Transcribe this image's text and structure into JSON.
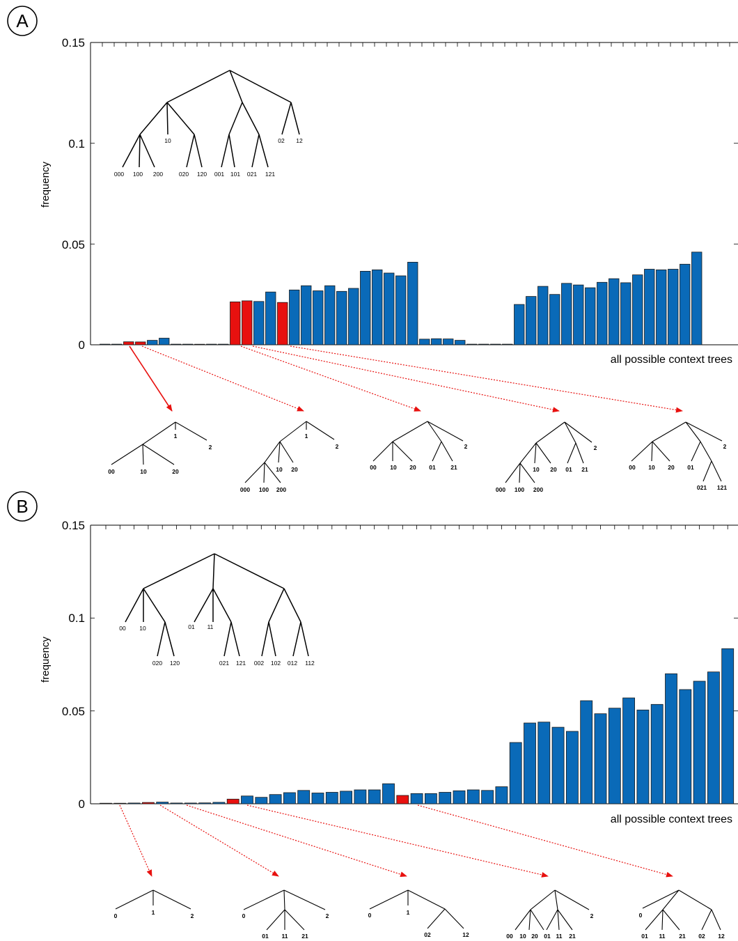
{
  "chart_data": [
    {
      "type": "bar",
      "panel_label": "A",
      "ylabel": "frequency",
      "xlabel": "all possible context trees",
      "ylim": [
        0,
        0.15
      ],
      "yticks": [
        "0",
        "0.05",
        "0.1",
        "0.15"
      ],
      "highlight_color": "#e8110f",
      "bar_color": "#0a6ab8",
      "values": [
        0.0003,
        0.0003,
        0.0015,
        0.0014,
        0.0022,
        0.0033,
        0.0003,
        0.0003,
        0.0002,
        0.0003,
        0.0003,
        0.0213,
        0.0218,
        0.0215,
        0.0262,
        0.021,
        0.0272,
        0.0293,
        0.0268,
        0.0293,
        0.0265,
        0.028,
        0.0365,
        0.0372,
        0.0356,
        0.0342,
        0.041,
        0.0028,
        0.003,
        0.0029,
        0.0022,
        0.0003,
        0.0003,
        0.0003,
        0.0003,
        0.02,
        0.024,
        0.029,
        0.025,
        0.0305,
        0.0297,
        0.0283,
        0.031,
        0.0328,
        0.0308,
        0.0347,
        0.0375,
        0.0372,
        0.0375,
        0.04,
        0.046
      ],
      "highlighted": [
        2,
        3,
        11,
        12,
        15
      ],
      "inset_tree": {
        "leaves": [
          "000",
          "100",
          "200",
          "10",
          "020",
          "120",
          "001",
          "101",
          "021",
          "121",
          "02",
          "12"
        ]
      },
      "example_trees": [
        {
          "leaves": [
            "00",
            "10",
            "20",
            "1",
            "2"
          ]
        },
        {
          "leaves": [
            "000",
            "100",
            "200",
            "10",
            "20",
            "1",
            "2"
          ]
        },
        {
          "leaves": [
            "00",
            "10",
            "20",
            "01",
            "21",
            "2"
          ]
        },
        {
          "leaves": [
            "000",
            "100",
            "200",
            "10",
            "20",
            "01",
            "21",
            "2"
          ]
        },
        {
          "leaves": [
            "00",
            "10",
            "20",
            "01",
            "021",
            "121",
            "2"
          ]
        }
      ]
    },
    {
      "type": "bar",
      "panel_label": "B",
      "ylabel": "frequency",
      "xlabel": "all possible context trees",
      "ylim": [
        0,
        0.15
      ],
      "yticks": [
        "0",
        "0.05",
        "0.1",
        "0.15"
      ],
      "highlight_color": "#e8110f",
      "bar_color": "#0a6ab8",
      "values": [
        0.0003,
        0.0003,
        0.0004,
        0.0007,
        0.0009,
        0.0004,
        0.0004,
        0.0005,
        0.0008,
        0.0025,
        0.0042,
        0.0035,
        0.005,
        0.006,
        0.0072,
        0.0058,
        0.0062,
        0.0068,
        0.0075,
        0.0075,
        0.0108,
        0.0045,
        0.0055,
        0.0055,
        0.0062,
        0.007,
        0.0075,
        0.0072,
        0.0092,
        0.033,
        0.0435,
        0.044,
        0.0412,
        0.039,
        0.0555,
        0.0485,
        0.0515,
        0.057,
        0.0505,
        0.0535,
        0.07,
        0.0615,
        0.066,
        0.071,
        0.0835
      ],
      "highlighted": [
        3,
        9,
        21
      ],
      "inset_tree": {
        "leaves": [
          "00",
          "10",
          "020",
          "120",
          "01",
          "11",
          "021",
          "121",
          "002",
          "102",
          "012",
          "112"
        ]
      },
      "example_trees": [
        {
          "leaves": [
            "0",
            "1",
            "2"
          ]
        },
        {
          "leaves": [
            "0",
            "01",
            "11",
            "21",
            "2"
          ]
        },
        {
          "leaves": [
            "0",
            "1",
            "02",
            "12"
          ]
        },
        {
          "leaves": [
            "00",
            "10",
            "20",
            "01",
            "11",
            "21",
            "2"
          ]
        },
        {
          "leaves": [
            "0",
            "01",
            "11",
            "21",
            "02",
            "12"
          ]
        }
      ]
    }
  ]
}
